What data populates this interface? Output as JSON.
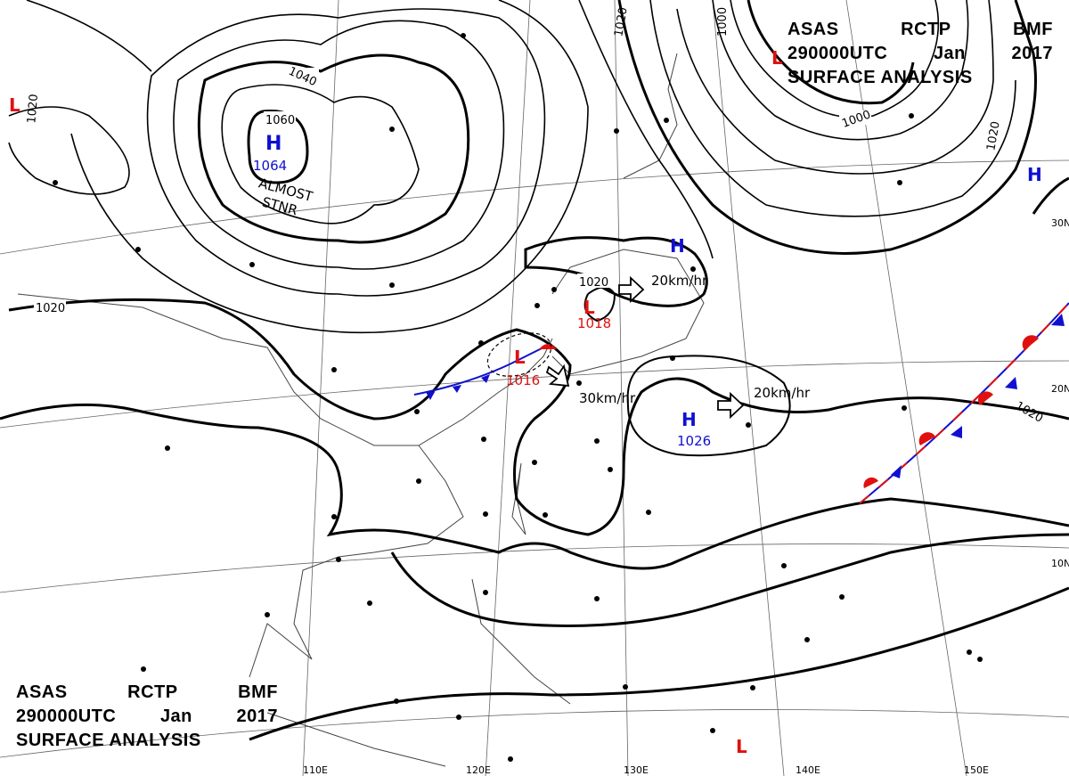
{
  "header": {
    "line1": [
      "ASAS",
      "RCTP",
      "BMF"
    ],
    "line2": [
      "290000UTC",
      "Jan",
      "2017"
    ],
    "line3": "SURFACE ANALYSIS"
  },
  "pressure_centers": [
    {
      "type": "H",
      "value": "1064",
      "note_1": "ALMOST",
      "note_2": "STNR",
      "color": "#1010d0"
    },
    {
      "type": "L",
      "value": "1018",
      "color": "#e01010"
    },
    {
      "type": "L",
      "value": "1016",
      "color": "#e01010"
    },
    {
      "type": "H",
      "value": "1026",
      "color": "#1010d0"
    },
    {
      "type": "H",
      "value": "",
      "color": "#1010d0"
    },
    {
      "type": "H",
      "value": "",
      "color": "#1010d0"
    },
    {
      "type": "L",
      "value": "",
      "color": "#e01010"
    },
    {
      "type": "L",
      "value": "",
      "color": "#e01010"
    },
    {
      "type": "L",
      "value": "",
      "color": "#e01010"
    }
  ],
  "motion_labels": [
    "20km/hr",
    "30km/hr",
    "20km/hr"
  ],
  "isobar_labels": [
    "1060",
    "1040",
    "1020",
    "1020",
    "1020",
    "1020",
    "1000",
    "1000",
    "1020",
    "1020"
  ],
  "latitude_labels": [
    "30N",
    "20N",
    "10N"
  ],
  "longitude_labels": [
    "110E",
    "120E",
    "130E",
    "140E",
    "150E"
  ],
  "colors": {
    "high": "#1010d0",
    "low": "#e01010",
    "isobar": "#000000",
    "grid": "#555555"
  }
}
